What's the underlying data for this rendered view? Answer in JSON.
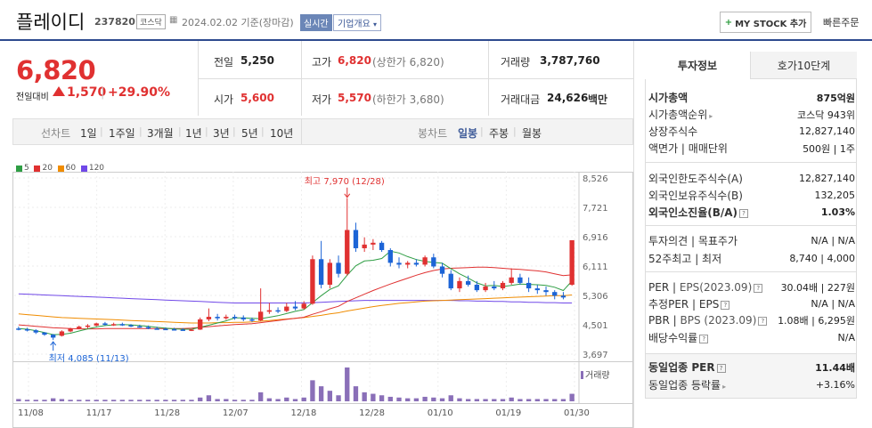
{
  "header": {
    "stock_name": "플레이디",
    "stock_code": "237820",
    "market": "코스닥",
    "base_date": "2024.02.02 기준(장마감)",
    "realtime_label": "실시간",
    "corp_info_label": "기업개요",
    "my_stock_label": "MY STOCK 추가",
    "quick_order_label": "빠른주문"
  },
  "quote": {
    "current_price": "6,820",
    "change_label": "전일대비",
    "change": "1,570",
    "change_rate": "+29.90%",
    "prev_close_label": "전일",
    "prev_close": "5,250",
    "open_label": "시가",
    "open": "5,600",
    "high_label": "고가",
    "high": "6,820",
    "upper_limit": "(상한가 6,820)",
    "low_label": "저가",
    "low": "5,570",
    "lower_limit": "(하한가 3,680)",
    "volume_label": "거래량",
    "volume": "3,787,760",
    "amount_label": "거래대금",
    "amount": "24,626",
    "amount_unit": "백만"
  },
  "chart_tabs": {
    "line_label": "선차트",
    "periods": [
      "1일",
      "1주일",
      "3개월",
      "1년",
      "3년",
      "5년",
      "10년"
    ],
    "candle_label": "봉차트",
    "candle_periods": [
      "일봉",
      "주봉",
      "월봉"
    ],
    "candle_selected": "일봉"
  },
  "legend": [
    {
      "name": "5",
      "color": "#2f9e44"
    },
    {
      "name": "20",
      "color": "#e03131"
    },
    {
      "name": "60",
      "color": "#f08c00"
    },
    {
      "name": "120",
      "color": "#7048e8"
    }
  ],
  "chart_data": {
    "type": "candlestick",
    "x_tick_labels": [
      "11/08",
      "11/17",
      "11/28",
      "12/07",
      "12/18",
      "12/28",
      "01/10",
      "01/19",
      "01/30"
    ],
    "y_tick_labels": [
      "8,526",
      "7,721",
      "6,916",
      "6,111",
      "5,306",
      "4,501",
      "3,697"
    ],
    "ylim": [
      3697,
      8526
    ],
    "max_annotation": "최고 7,970 (12/28)",
    "min_annotation": "최저 4,085 (11/13)",
    "volume_label": "거래량",
    "candles": [
      {
        "o": 4400,
        "h": 4450,
        "l": 4350,
        "c": 4380
      },
      {
        "o": 4380,
        "h": 4420,
        "l": 4320,
        "c": 4350
      },
      {
        "o": 4350,
        "h": 4380,
        "l": 4250,
        "c": 4290
      },
      {
        "o": 4290,
        "h": 4300,
        "l": 4200,
        "c": 4230
      },
      {
        "o": 4230,
        "h": 4250,
        "l": 4085,
        "c": 4150
      },
      {
        "o": 4200,
        "h": 4350,
        "l": 4180,
        "c": 4320
      },
      {
        "o": 4320,
        "h": 4420,
        "l": 4300,
        "c": 4400
      },
      {
        "o": 4400,
        "h": 4480,
        "l": 4380,
        "c": 4450
      },
      {
        "o": 4450,
        "h": 4520,
        "l": 4400,
        "c": 4480
      },
      {
        "o": 4480,
        "h": 4560,
        "l": 4460,
        "c": 4540
      },
      {
        "o": 4540,
        "h": 4580,
        "l": 4480,
        "c": 4500
      },
      {
        "o": 4500,
        "h": 4560,
        "l": 4470,
        "c": 4520
      },
      {
        "o": 4520,
        "h": 4560,
        "l": 4470,
        "c": 4490
      },
      {
        "o": 4490,
        "h": 4520,
        "l": 4440,
        "c": 4460
      },
      {
        "o": 4460,
        "h": 4500,
        "l": 4420,
        "c": 4440
      },
      {
        "o": 4440,
        "h": 4480,
        "l": 4380,
        "c": 4400
      },
      {
        "o": 4400,
        "h": 4450,
        "l": 4370,
        "c": 4390
      },
      {
        "o": 4390,
        "h": 4430,
        "l": 4360,
        "c": 4380
      },
      {
        "o": 4380,
        "h": 4420,
        "l": 4350,
        "c": 4370
      },
      {
        "o": 4370,
        "h": 4410,
        "l": 4340,
        "c": 4360
      },
      {
        "o": 4360,
        "h": 4390,
        "l": 4330,
        "c": 4370
      },
      {
        "o": 4370,
        "h": 4700,
        "l": 4360,
        "c": 4650
      },
      {
        "o": 4650,
        "h": 4950,
        "l": 4600,
        "c": 4720
      },
      {
        "o": 4720,
        "h": 4800,
        "l": 4620,
        "c": 4680
      },
      {
        "o": 4680,
        "h": 4780,
        "l": 4640,
        "c": 4720
      },
      {
        "o": 4720,
        "h": 4780,
        "l": 4640,
        "c": 4700
      },
      {
        "o": 4700,
        "h": 4760,
        "l": 4600,
        "c": 4650
      },
      {
        "o": 4650,
        "h": 4700,
        "l": 4580,
        "c": 4620
      },
      {
        "o": 4620,
        "h": 5500,
        "l": 4600,
        "c": 4860
      },
      {
        "o": 4860,
        "h": 5100,
        "l": 4800,
        "c": 4900
      },
      {
        "o": 4900,
        "h": 4980,
        "l": 4820,
        "c": 4880
      },
      {
        "o": 4880,
        "h": 5100,
        "l": 4850,
        "c": 5000
      },
      {
        "o": 5000,
        "h": 5150,
        "l": 4900,
        "c": 4950
      },
      {
        "o": 4950,
        "h": 5150,
        "l": 4920,
        "c": 5080
      },
      {
        "o": 5080,
        "h": 6400,
        "l": 5050,
        "c": 6300
      },
      {
        "o": 6300,
        "h": 6800,
        "l": 5500,
        "c": 5600
      },
      {
        "o": 5600,
        "h": 6300,
        "l": 5500,
        "c": 6200
      },
      {
        "o": 6200,
        "h": 6400,
        "l": 5800,
        "c": 5900
      },
      {
        "o": 5900,
        "h": 7970,
        "l": 5850,
        "c": 7100
      },
      {
        "o": 7100,
        "h": 7300,
        "l": 6500,
        "c": 6600
      },
      {
        "o": 6600,
        "h": 6900,
        "l": 6500,
        "c": 6700
      },
      {
        "o": 6700,
        "h": 6850,
        "l": 6550,
        "c": 6750
      },
      {
        "o": 6750,
        "h": 6800,
        "l": 6500,
        "c": 6550
      },
      {
        "o": 6550,
        "h": 6600,
        "l": 6100,
        "c": 6200
      },
      {
        "o": 6200,
        "h": 6350,
        "l": 6050,
        "c": 6150
      },
      {
        "o": 6150,
        "h": 6250,
        "l": 6050,
        "c": 6200
      },
      {
        "o": 6200,
        "h": 6300,
        "l": 6100,
        "c": 6150
      },
      {
        "o": 6150,
        "h": 6400,
        "l": 6100,
        "c": 6350
      },
      {
        "o": 6350,
        "h": 6450,
        "l": 6050,
        "c": 6100
      },
      {
        "o": 6100,
        "h": 6200,
        "l": 5800,
        "c": 5900
      },
      {
        "o": 5900,
        "h": 6000,
        "l": 5450,
        "c": 5500
      },
      {
        "o": 5500,
        "h": 5800,
        "l": 5400,
        "c": 5700
      },
      {
        "o": 5700,
        "h": 5850,
        "l": 5550,
        "c": 5600
      },
      {
        "o": 5600,
        "h": 5700,
        "l": 5400,
        "c": 5450
      },
      {
        "o": 5450,
        "h": 5650,
        "l": 5400,
        "c": 5550
      },
      {
        "o": 5550,
        "h": 5700,
        "l": 5450,
        "c": 5500
      },
      {
        "o": 5500,
        "h": 5700,
        "l": 5450,
        "c": 5650
      },
      {
        "o": 5650,
        "h": 6050,
        "l": 5600,
        "c": 5800
      },
      {
        "o": 5800,
        "h": 5900,
        "l": 5600,
        "c": 5650
      },
      {
        "o": 5650,
        "h": 5800,
        "l": 5400,
        "c": 5500
      },
      {
        "o": 5500,
        "h": 5600,
        "l": 5350,
        "c": 5450
      },
      {
        "o": 5450,
        "h": 5550,
        "l": 5300,
        "c": 5400
      },
      {
        "o": 5400,
        "h": 5450,
        "l": 5200,
        "c": 5300
      },
      {
        "o": 5300,
        "h": 5400,
        "l": 5200,
        "c": 5250
      },
      {
        "o": 5600,
        "h": 6820,
        "l": 5570,
        "c": 6820
      }
    ],
    "volumes": [
      3,
      2,
      2,
      2,
      4,
      3,
      2,
      2,
      2,
      2,
      2,
      2,
      2,
      2,
      2,
      2,
      2,
      2,
      2,
      2,
      2,
      5,
      8,
      3,
      3,
      2,
      2,
      2,
      12,
      4,
      3,
      5,
      3,
      5,
      28,
      20,
      14,
      8,
      45,
      20,
      12,
      10,
      8,
      6,
      5,
      4,
      4,
      6,
      5,
      4,
      8,
      4,
      3,
      3,
      3,
      3,
      3,
      5,
      3,
      3,
      3,
      3,
      3,
      3,
      10
    ],
    "ma5": [
      4400,
      4380,
      4340,
      4290,
      4230,
      4240,
      4270,
      4330,
      4390,
      4440,
      4480,
      4500,
      4510,
      4500,
      4480,
      4460,
      4430,
      4410,
      4390,
      4380,
      4380,
      4430,
      4490,
      4550,
      4610,
      4690,
      4690,
      4680,
      4670,
      4710,
      4750,
      4810,
      4870,
      4920,
      5110,
      5300,
      5470,
      5570,
      5860,
      6120,
      6250,
      6270,
      6320,
      6520,
      6470,
      6370,
      6290,
      6240,
      6210,
      6190,
      6040,
      5900,
      5780,
      5650,
      5570,
      5580,
      5550,
      5580,
      5620,
      5610,
      5600,
      5580,
      5530,
      5440,
      5700
    ],
    "ma20": [
      4500,
      4480,
      4460,
      4440,
      4420,
      4410,
      4400,
      4390,
      4390,
      4390,
      4400,
      4400,
      4400,
      4400,
      4400,
      4400,
      4400,
      4400,
      4400,
      4400,
      4410,
      4430,
      4450,
      4470,
      4490,
      4510,
      4520,
      4530,
      4560,
      4590,
      4620,
      4650,
      4680,
      4710,
      4790,
      4860,
      4940,
      5010,
      5140,
      5240,
      5340,
      5440,
      5530,
      5620,
      5700,
      5780,
      5860,
      5930,
      5990,
      6030,
      6050,
      6060,
      6070,
      6080,
      6080,
      6070,
      6050,
      6030,
      6020,
      6000,
      5980,
      5950,
      5900,
      5850,
      5870
    ],
    "ma60": [
      4800,
      4780,
      4760,
      4740,
      4720,
      4700,
      4690,
      4680,
      4670,
      4660,
      4650,
      4640,
      4630,
      4620,
      4610,
      4600,
      4590,
      4580,
      4570,
      4560,
      4550,
      4550,
      4550,
      4560,
      4560,
      4570,
      4570,
      4580,
      4600,
      4620,
      4640,
      4660,
      4680,
      4700,
      4730,
      4760,
      4800,
      4830,
      4880,
      4920,
      4960,
      5000,
      5030,
      5060,
      5090,
      5110,
      5130,
      5150,
      5160,
      5170,
      5180,
      5190,
      5200,
      5210,
      5220,
      5230,
      5240,
      5250,
      5260,
      5270,
      5280,
      5290,
      5300,
      5300,
      5320
    ],
    "ma120": [
      5350,
      5340,
      5330,
      5320,
      5310,
      5300,
      5290,
      5280,
      5270,
      5260,
      5250,
      5240,
      5230,
      5220,
      5210,
      5200,
      5190,
      5180,
      5170,
      5160,
      5150,
      5140,
      5130,
      5120,
      5110,
      5100,
      5100,
      5100,
      5100,
      5100,
      5100,
      5100,
      5100,
      5100,
      5110,
      5120,
      5130,
      5140,
      5150,
      5160,
      5170,
      5170,
      5170,
      5170,
      5170,
      5170,
      5170,
      5170,
      5170,
      5170,
      5170,
      5160,
      5160,
      5150,
      5150,
      5140,
      5140,
      5130,
      5130,
      5120,
      5120,
      5110,
      5110,
      5100,
      5100
    ]
  },
  "right_panel": {
    "tab_invest": "투자정보",
    "tab_orderbook": "호가10단계",
    "market_cap_label": "시가총액",
    "market_cap": "875억원",
    "market_cap_rank_label": "시가총액순위",
    "market_cap_rank": "코스닥 943위",
    "listed_shares_label": "상장주식수",
    "listed_shares": "12,827,140",
    "par_label": "액면가 | 매매단위",
    "par_value": "500원 | 1주",
    "foreign_limit_label": "외국인한도주식수(A)",
    "foreign_limit": "12,827,140",
    "foreign_hold_label": "외국인보유주식수(B)",
    "foreign_hold": "132,205",
    "foreign_ratio_label": "외국인소진율(B/A)",
    "foreign_ratio": "1.03%",
    "opinion_label": "투자의견 | 목표주가",
    "opinion_value": "N/A | N/A",
    "week52_label": "52주최고 | 최저",
    "week52_value": "8,740 | 4,000",
    "per_label": "PER",
    "eps_label": "EPS(2023.09)",
    "per_eps_value": "30.04배 | 227원",
    "est_label": "추정PER | EPS",
    "est_value": "N/A | N/A",
    "pbr_label": "PBR",
    "bps_label": "BPS (2023.09)",
    "pbr_bps_value": "1.08배 | 6,295원",
    "dividend_label": "배당수익률",
    "dividend_value": "N/A",
    "industry_per_label": "동일업종 PER",
    "industry_per": "11.44배",
    "industry_change_label": "동일업종 등락률",
    "industry_change": "+3.16%"
  }
}
